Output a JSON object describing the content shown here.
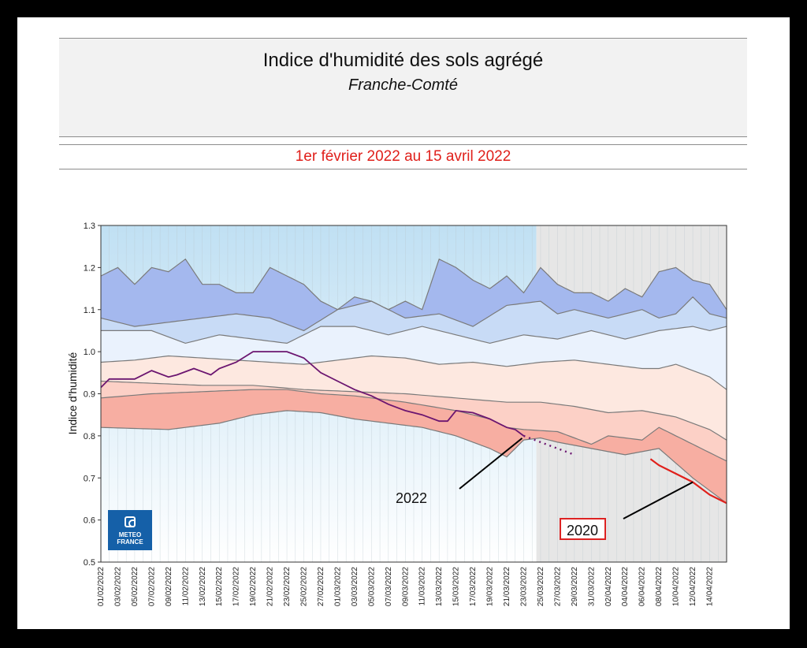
{
  "header": {
    "title": "Indice d'humidité des sols agrégé",
    "subtitle": "Franche-Comté",
    "date_range": "1er février 2022 au 15 avril 2022"
  },
  "logo": {
    "line1": "METEO",
    "line2": "FRANCE",
    "icon": "meteo-france-logo-icon"
  },
  "colors": {
    "accent": "#e0201b",
    "series_2022": "#6b1570",
    "series_2020": "#e0201b",
    "band_high_outer": "#a4b8ee",
    "band_high_inner": "#c8dbf6",
    "band_mid_high": "#eaf2fd",
    "band_mid_low": "#fde8e0",
    "band_low_inner": "#fcd0c6",
    "band_low_outer": "#f7aea2",
    "observed_bg": "#c0e0f3",
    "forecast_bg": "#e6e6e6"
  },
  "chart_data": {
    "type": "area",
    "title": "Indice d'humidité des sols agrégé",
    "ylabel": "Indice d'humidité",
    "xlabel": "",
    "ylim": [
      0.5,
      1.3
    ],
    "yticks": [
      "0.5",
      "0.6",
      "0.7",
      "0.8",
      "0.9",
      "1.0",
      "1.1",
      "1.2",
      "1.3"
    ],
    "x_start": "01/02/2022",
    "x_end": "15/04/2022",
    "forecast_start_day": 51.5,
    "x_tick_labels": [
      "01/02/2022",
      "03/02/2022",
      "05/02/2022",
      "07/02/2022",
      "09/02/2022",
      "11/02/2022",
      "13/02/2022",
      "15/02/2022",
      "17/02/2022",
      "19/02/2022",
      "21/02/2022",
      "23/02/2022",
      "25/02/2022",
      "27/02/2022",
      "01/03/2022",
      "03/03/2022",
      "05/03/2022",
      "07/03/2022",
      "09/03/2022",
      "11/03/2022",
      "13/03/2022",
      "15/03/2022",
      "17/03/2022",
      "19/03/2022",
      "21/03/2022",
      "23/03/2022",
      "25/03/2022",
      "27/03/2022",
      "29/03/2022",
      "31/03/2022",
      "02/04/2022",
      "04/04/2022",
      "06/04/2022",
      "08/04/2022",
      "10/04/2022",
      "12/04/2022",
      "14/04/2022"
    ],
    "envelopes": [
      {
        "name": "max",
        "days": [
          0,
          2,
          4,
          6,
          8,
          10,
          12,
          14,
          16,
          18,
          20,
          22,
          24,
          26,
          28,
          30,
          32,
          34,
          36,
          38,
          40,
          42,
          44,
          46,
          48,
          50,
          52,
          54,
          56,
          58,
          60,
          62,
          64,
          66,
          68,
          70,
          72,
          74
        ],
        "values": [
          1.18,
          1.2,
          1.16,
          1.2,
          1.19,
          1.22,
          1.16,
          1.16,
          1.14,
          1.14,
          1.2,
          1.18,
          1.16,
          1.12,
          1.1,
          1.13,
          1.12,
          1.1,
          1.12,
          1.1,
          1.22,
          1.2,
          1.17,
          1.15,
          1.18,
          1.14,
          1.2,
          1.16,
          1.14,
          1.14,
          1.12,
          1.15,
          1.13,
          1.19,
          1.2,
          1.17,
          1.16,
          1.1
        ]
      },
      {
        "name": "q90",
        "days": [
          0,
          4,
          8,
          12,
          16,
          20,
          24,
          28,
          32,
          36,
          40,
          44,
          48,
          52,
          54,
          56,
          60,
          64,
          66,
          68,
          70,
          72,
          74
        ],
        "values": [
          1.08,
          1.06,
          1.07,
          1.08,
          1.09,
          1.08,
          1.05,
          1.1,
          1.12,
          1.08,
          1.09,
          1.06,
          1.11,
          1.12,
          1.09,
          1.1,
          1.08,
          1.1,
          1.08,
          1.09,
          1.13,
          1.09,
          1.08
        ]
      },
      {
        "name": "q80",
        "days": [
          0,
          6,
          10,
          14,
          18,
          22,
          26,
          30,
          34,
          38,
          42,
          46,
          50,
          54,
          58,
          62,
          66,
          70,
          72,
          74
        ],
        "values": [
          1.05,
          1.05,
          1.02,
          1.04,
          1.03,
          1.02,
          1.06,
          1.06,
          1.04,
          1.06,
          1.04,
          1.02,
          1.04,
          1.03,
          1.05,
          1.03,
          1.05,
          1.06,
          1.05,
          1.06
        ]
      },
      {
        "name": "median",
        "days": [
          0,
          4,
          8,
          12,
          16,
          20,
          24,
          28,
          32,
          36,
          40,
          44,
          48,
          52,
          56,
          60,
          64,
          66,
          68,
          72,
          74
        ],
        "values": [
          0.975,
          0.98,
          0.99,
          0.985,
          0.98,
          0.975,
          0.97,
          0.98,
          0.99,
          0.985,
          0.97,
          0.975,
          0.965,
          0.975,
          0.98,
          0.97,
          0.96,
          0.96,
          0.97,
          0.94,
          0.91
        ]
      },
      {
        "name": "q20",
        "days": [
          0,
          6,
          12,
          18,
          24,
          30,
          36,
          42,
          48,
          52,
          56,
          60,
          64,
          68,
          72,
          74
        ],
        "values": [
          0.93,
          0.925,
          0.92,
          0.92,
          0.91,
          0.905,
          0.9,
          0.89,
          0.88,
          0.88,
          0.87,
          0.855,
          0.86,
          0.845,
          0.815,
          0.79
        ]
      },
      {
        "name": "q10",
        "days": [
          0,
          6,
          12,
          18,
          22,
          26,
          30,
          36,
          42,
          46,
          48,
          50,
          54,
          58,
          60,
          64,
          66,
          68,
          72,
          74
        ],
        "values": [
          0.89,
          0.9,
          0.905,
          0.91,
          0.91,
          0.9,
          0.895,
          0.88,
          0.86,
          0.84,
          0.82,
          0.815,
          0.81,
          0.78,
          0.8,
          0.79,
          0.82,
          0.8,
          0.76,
          0.74
        ]
      },
      {
        "name": "min",
        "days": [
          0,
          8,
          14,
          18,
          22,
          26,
          30,
          34,
          38,
          42,
          46,
          48,
          50,
          52,
          54,
          58,
          62,
          66,
          70,
          74
        ],
        "values": [
          0.82,
          0.815,
          0.83,
          0.85,
          0.86,
          0.855,
          0.84,
          0.83,
          0.82,
          0.8,
          0.77,
          0.75,
          0.79,
          0.795,
          0.785,
          0.77,
          0.755,
          0.77,
          0.7,
          0.64
        ]
      }
    ],
    "series": [
      {
        "name": "2022",
        "label": "2022",
        "days": [
          0,
          1,
          4,
          6,
          8,
          9,
          11,
          13,
          14,
          16,
          18,
          22,
          24,
          26,
          28,
          30,
          32,
          34,
          36,
          38,
          40,
          41,
          42,
          44,
          46,
          48,
          49,
          50
        ],
        "values": [
          0.915,
          0.935,
          0.935,
          0.955,
          0.94,
          0.945,
          0.96,
          0.945,
          0.96,
          0.975,
          1.0,
          1.0,
          0.985,
          0.95,
          0.93,
          0.91,
          0.895,
          0.875,
          0.86,
          0.85,
          0.835,
          0.835,
          0.86,
          0.855,
          0.84,
          0.82,
          0.815,
          0.8
        ]
      },
      {
        "name": "2022-forecast",
        "dashed": true,
        "days": [
          50,
          52,
          54,
          56
        ],
        "values": [
          0.8,
          0.785,
          0.77,
          0.755
        ]
      },
      {
        "name": "2020",
        "label": "2020",
        "days": [
          65,
          66,
          68,
          70,
          72,
          74
        ],
        "values": [
          0.745,
          0.73,
          0.71,
          0.69,
          0.66,
          0.64
        ]
      }
    ],
    "annotations": [
      {
        "text": "2022",
        "series": "2022"
      },
      {
        "text": "2020",
        "series": "2020",
        "boxed": true
      }
    ]
  }
}
